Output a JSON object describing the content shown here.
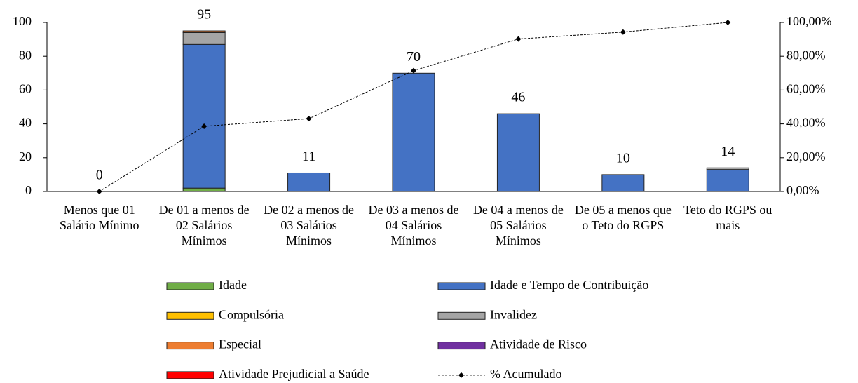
{
  "chart_data": {
    "type": "bar",
    "categories": [
      "Menos que 01 Salário Mínimo",
      "De 01 a menos de 02 Salários Mínimos",
      "De 02 a menos de 03 Salários Mínimos",
      "De 03 a menos de 04 Salários Mínimos",
      "De 04 a menos de 05 Salários Mínimos",
      "De 05 a menos que o Teto do RGPS",
      "Teto do RGPS ou mais"
    ],
    "series": [
      {
        "name": "Idade",
        "color": "#70ad47",
        "values": [
          0,
          2,
          0,
          0,
          0,
          0,
          0
        ]
      },
      {
        "name": "Idade e Tempo de Contribuição",
        "color": "#4472c4",
        "values": [
          0,
          85,
          11,
          70,
          46,
          10,
          13
        ]
      },
      {
        "name": "Compulsória",
        "color": "#ffc000",
        "values": [
          0,
          0,
          0,
          0,
          0,
          0,
          0
        ]
      },
      {
        "name": "Invalidez",
        "color": "#a5a5a5",
        "values": [
          0,
          7,
          0,
          0,
          0,
          0,
          1
        ]
      },
      {
        "name": "Especial",
        "color": "#ed7d31",
        "values": [
          0,
          1,
          0,
          0,
          0,
          0,
          0
        ]
      },
      {
        "name": "Atividade de Risco",
        "color": "#7030a0",
        "values": [
          0,
          0,
          0,
          0,
          0,
          0,
          0
        ]
      },
      {
        "name": "Atividade Prejudicial a Saúde",
        "color": "#ff0000",
        "values": [
          0,
          0,
          0,
          0,
          0,
          0,
          0
        ]
      },
      {
        "name": "% Acumulado",
        "color": "#000000",
        "type": "line",
        "axis": "y2",
        "values": [
          0,
          38.6,
          43.1,
          71.5,
          90.2,
          94.3,
          100
        ]
      }
    ],
    "totals": [
      0,
      95,
      11,
      70,
      46,
      10,
      14
    ],
    "ylim": [
      0,
      100
    ],
    "yticks": [
      0,
      20,
      40,
      60,
      80,
      100
    ],
    "y2lim": [
      0,
      100
    ],
    "y2ticks": [
      {
        "value": 0,
        "label": "0,00%"
      },
      {
        "value": 20,
        "label": "20,00%"
      },
      {
        "value": 40,
        "label": "40,00%"
      },
      {
        "value": 60,
        "label": "60,00%"
      },
      {
        "value": 80,
        "label": "80,00%"
      },
      {
        "value": 100,
        "label": "100,00%"
      }
    ],
    "legend": "bottom"
  }
}
